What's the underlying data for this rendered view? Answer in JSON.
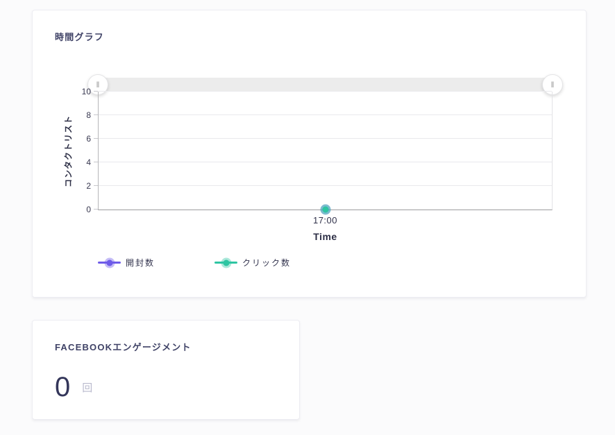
{
  "time_graph_card": {
    "title": "時間グラフ",
    "slider": {
      "grip_glyph": "‖",
      "track_color": "#ececec"
    }
  },
  "facebook_card": {
    "title": "FACEBOOKエンゲージメント",
    "value": "0",
    "unit": "回"
  },
  "chart_data": {
    "type": "line",
    "title": "時間グラフ",
    "xlabel": "Time",
    "ylabel": "コンタクトリスト",
    "x": [
      "17:00"
    ],
    "series": [
      {
        "name": "開封数",
        "color": "#6e5be8",
        "values": [
          0
        ]
      },
      {
        "name": "クリック数",
        "color": "#2ec5a2",
        "values": [
          0
        ]
      }
    ],
    "ylim": [
      0,
      10
    ],
    "yticks": [
      0,
      2,
      4,
      6,
      8,
      10
    ],
    "grid": true,
    "legend_position": "bottom"
  }
}
